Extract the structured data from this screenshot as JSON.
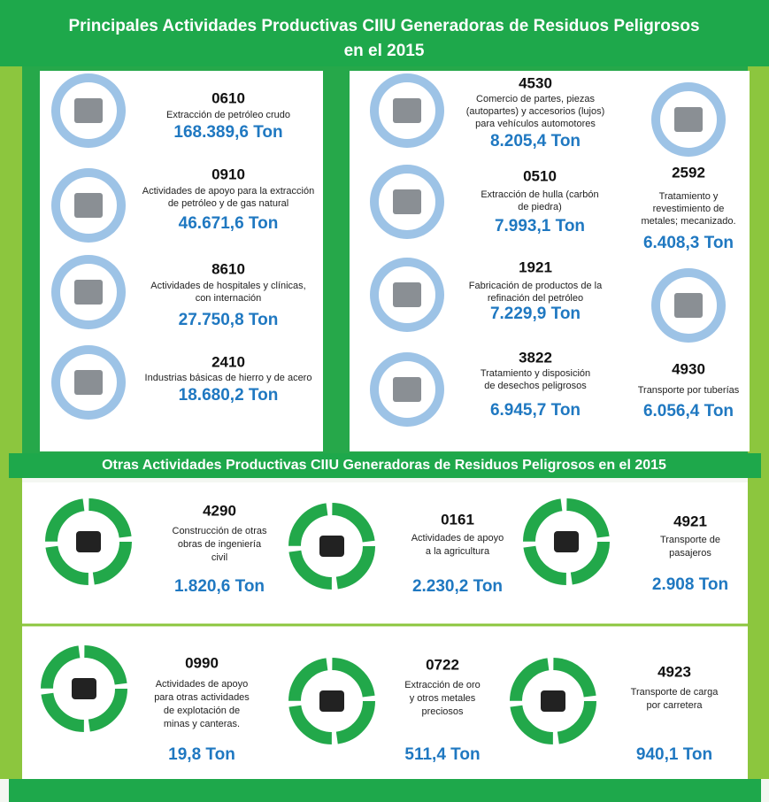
{
  "header": {
    "title_lines": [
      "Principales Actividades Productivas CIIU  Generadoras de Residuos Peligrosos",
      "en el 2015"
    ]
  },
  "main_activities": [
    {
      "code": "0610",
      "description": [
        "Extracción de petróleo crudo"
      ],
      "amount": "168.389,6 Ton"
    },
    {
      "code": "0910",
      "description": [
        "Actividades de apoyo para la extracción",
        "de petróleo y de gas natural"
      ],
      "amount": "46.671,6 Ton"
    },
    {
      "code": "8610",
      "description": [
        "Actividades de hospitales y clínicas,",
        "con internación"
      ],
      "amount": "27.750,8 Ton"
    },
    {
      "code": "2410",
      "description": [
        "Industrias básicas de hierro y de acero"
      ],
      "amount": "18.680,2 Ton"
    },
    {
      "code": "4530",
      "description": [
        "Comercio de partes, piezas",
        "(autopartes) y accesorios (lujos)",
        "para vehículos  automotores"
      ],
      "amount": "8.205,4 Ton"
    },
    {
      "code": "0510",
      "description": [
        "Extracción de hulla  (carbón",
        "de piedra)"
      ],
      "amount": "7.993,1 Ton"
    },
    {
      "code": "1921",
      "description": [
        "Fabricación de productos de la",
        "refinación del petróleo"
      ],
      "amount": "7.229,9 Ton"
    },
    {
      "code": "3822",
      "description": [
        "Tratamiento  y disposición",
        "de desechos peligrosos"
      ],
      "amount": "6.945,7 Ton"
    },
    {
      "code": "2592",
      "description": [
        "Tratamiento y",
        "revestimiento de",
        "metales; mecanizado."
      ],
      "amount": "6.408,3 Ton"
    },
    {
      "code": "4930",
      "description": [
        "Transporte  por tuberías"
      ],
      "amount": "6.056,4 Ton"
    }
  ],
  "other_title": "Otras Actividades Productivas CIIU  Generadoras de Residuos Peligrosos en el 2015",
  "other_activities": [
    {
      "code": "4290",
      "description": [
        "Construcción de otras",
        "obras de ingeniería",
        "civil"
      ],
      "amount": "1.820,6 Ton"
    },
    {
      "code": "0161",
      "description": [
        "Actividades de apoyo",
        "a la agricultura"
      ],
      "amount": "2.230,2 Ton"
    },
    {
      "code": "4921",
      "description": [
        "Transporte de",
        "pasajeros"
      ],
      "amount": "2.908 Ton"
    },
    {
      "code": "0990",
      "description": [
        "Actividades de apoyo",
        "para otras actividades",
        "de explotación de",
        "minas y canteras."
      ],
      "amount": "19,8 Ton"
    },
    {
      "code": "0722",
      "description": [
        "Extracción de oro",
        "y otros metales",
        "preciosos"
      ],
      "amount": "511,4 Ton"
    },
    {
      "code": "4923",
      "description": [
        "Transporte de carga",
        "por carretera"
      ],
      "amount": "940,1 Ton"
    }
  ]
}
